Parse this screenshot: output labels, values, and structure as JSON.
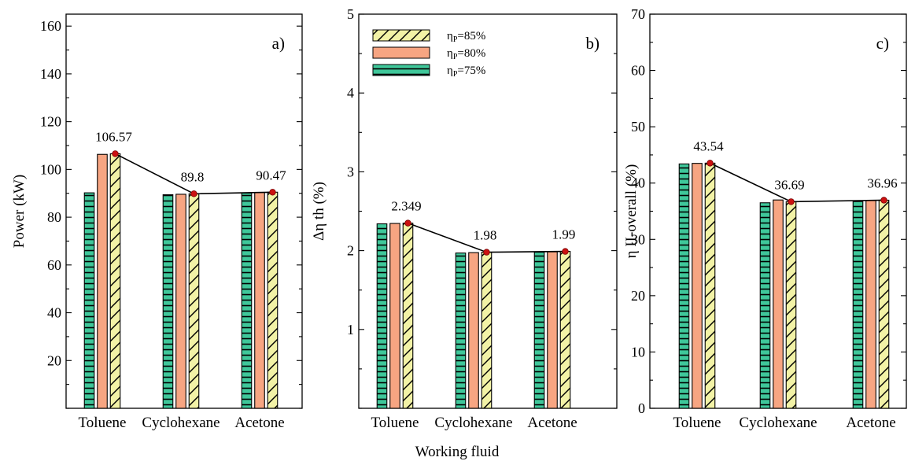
{
  "figure": {
    "xlabel": "Working fluid",
    "legend": {
      "placement": "top-left of panel b",
      "entries": [
        {
          "series": 2,
          "symbol": "η",
          "sub": "P",
          "text": "=85%"
        },
        {
          "series": 1,
          "symbol": "η",
          "sub": "P",
          "text": "=80%"
        },
        {
          "series": 0,
          "symbol": "η",
          "sub": "P",
          "text": "=75%"
        }
      ]
    }
  },
  "colors": {
    "series_75": "#3fc79a",
    "series_80": "#f7a582",
    "series_85": "#f2f2a6",
    "line": "#000000",
    "marker": "#cc1111"
  },
  "chart_data": [
    {
      "type": "bar",
      "panel": "a)",
      "ylabel": "Power (kW)",
      "ylim": [
        0,
        165
      ],
      "yticks": [
        20,
        40,
        60,
        80,
        100,
        120,
        140,
        160
      ],
      "categories": [
        "Toluene",
        "Cyclohexane",
        "Acetone"
      ],
      "series": [
        {
          "values": [
            90.2,
            89.4,
            90.1
          ]
        },
        {
          "values": [
            106.3,
            89.6,
            90.4
          ]
        },
        {
          "values": [
            106.57,
            89.8,
            90.47
          ]
        }
      ],
      "line_values": [
        106.57,
        89.8,
        90.47
      ],
      "data_labels": [
        "106.57",
        "89.8",
        "90.47"
      ]
    },
    {
      "type": "bar",
      "panel": "b)",
      "ylabel": "Δη th (%)",
      "ylim": [
        0,
        5
      ],
      "yticks": [
        1,
        2,
        3,
        4,
        5
      ],
      "categories": [
        "Toluene",
        "Cyclohexane",
        "Acetone"
      ],
      "series": [
        {
          "values": [
            2.34,
            1.97,
            1.98
          ]
        },
        {
          "values": [
            2.345,
            1.975,
            1.985
          ]
        },
        {
          "values": [
            2.349,
            1.98,
            1.99
          ]
        }
      ],
      "line_values": [
        2.349,
        1.98,
        1.99
      ],
      "data_labels": [
        "2.349",
        "1.98",
        "1.99"
      ]
    },
    {
      "type": "bar",
      "panel": "c)",
      "ylabel": "η II-overall (%)",
      "ylim": [
        0,
        70
      ],
      "yticks": [
        0,
        10,
        20,
        30,
        40,
        50,
        60,
        70
      ],
      "categories": [
        "Toluene",
        "Cyclohexane",
        "Acetone"
      ],
      "series": [
        {
          "values": [
            43.4,
            36.5,
            36.7
          ]
        },
        {
          "values": [
            43.5,
            37.0,
            36.9
          ]
        },
        {
          "values": [
            43.54,
            36.69,
            36.96
          ]
        }
      ],
      "line_values": [
        43.54,
        36.69,
        36.96
      ],
      "data_labels": [
        "43.54",
        "36.69",
        "36.96"
      ]
    }
  ]
}
